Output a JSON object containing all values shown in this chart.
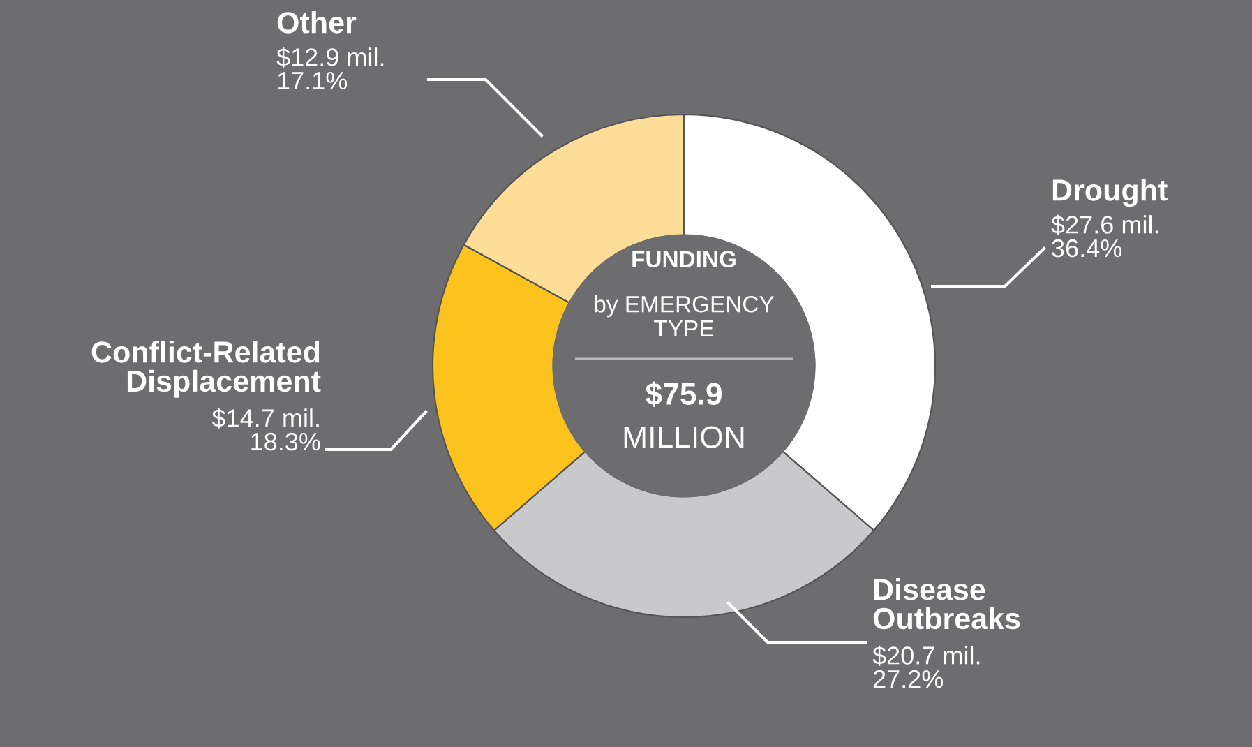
{
  "chart_data": {
    "type": "donut",
    "title": "FUNDING",
    "subtitle": "by EMERGENCY\nTYPE",
    "categories": [
      "Drought",
      "Disease\nOutbreaks",
      "Conflict-Related\nDisplacement",
      "Other"
    ],
    "values": [
      27.6,
      20.7,
      14.7,
      12.9
    ],
    "value_labels": [
      "$27.6 mil.\n36.4%",
      "$20.7 mil.\n27.2%",
      "$14.7 mil.\n18.3%",
      "$12.9 mil.\n17.1%"
    ],
    "colors": [
      "#ffffff",
      "#c9c9cb",
      "#fcc31f",
      "#fedd98"
    ],
    "annotations": [
      "$75.9",
      "MILLION"
    ],
    "legend": false
  }
}
